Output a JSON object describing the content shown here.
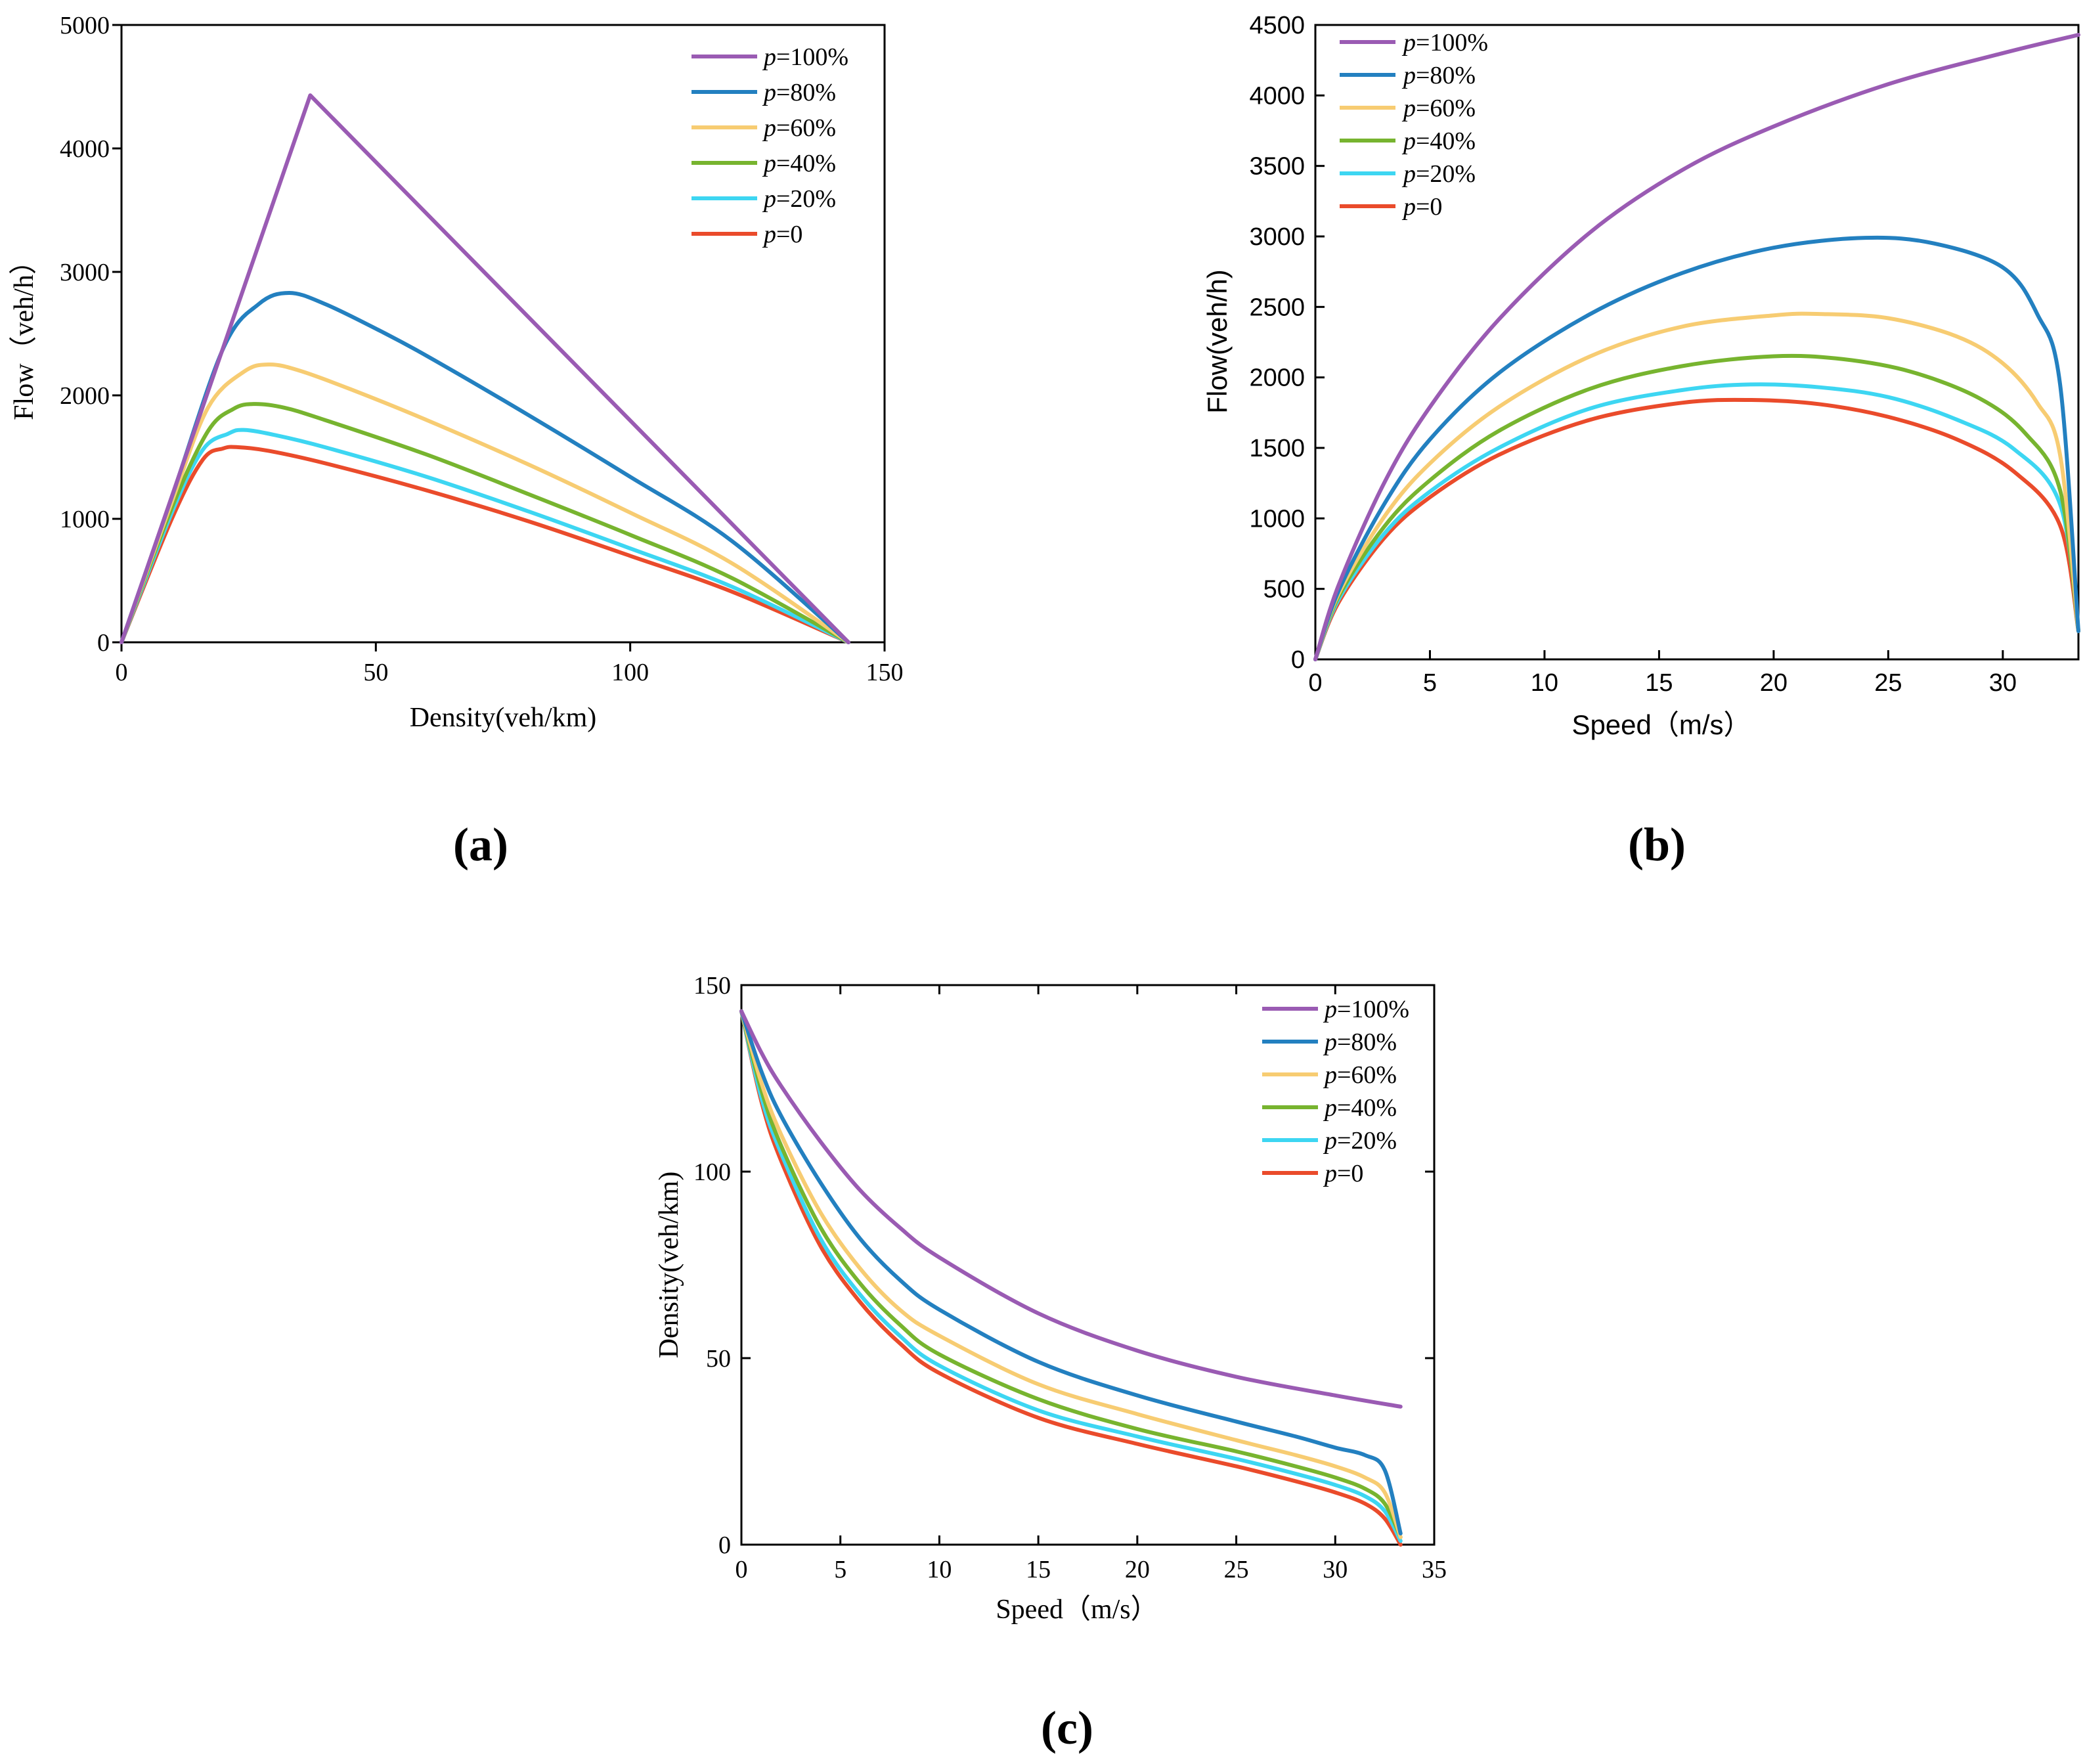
{
  "colors": {
    "p100": "#9A5BB3",
    "p80": "#2380C0",
    "p60": "#F7CC72",
    "p40": "#77B42F",
    "p20": "#3DD6F2",
    "p0": "#EA4B2B"
  },
  "chart_data": [
    {
      "id": "a",
      "type": "line",
      "panel_label": "(a)",
      "title": "",
      "xlabel": "Density(veh/km)",
      "ylabel": "Flow（veh/h）",
      "xlim": [
        0,
        150
      ],
      "ylim": [
        0,
        5000
      ],
      "xticks": [
        "0",
        "50",
        "100",
        "150"
      ],
      "yticks": [
        "0",
        "1000",
        "2000",
        "3000",
        "4000",
        "5000"
      ],
      "legend_position": "top-right",
      "series": [
        {
          "key": "p100",
          "name_italic": "p",
          "name_rest": "=100%",
          "x": [
            0,
            37.1,
            142.9
          ],
          "y": [
            0,
            4430,
            0
          ]
        },
        {
          "key": "p80",
          "name_italic": "p",
          "name_rest": "=80%",
          "x": [
            0,
            10,
            20,
            27,
            33,
            40,
            50,
            60,
            80,
            100,
            120,
            142.9
          ],
          "y": [
            0,
            1190,
            2380,
            2740,
            2830,
            2740,
            2540,
            2320,
            1840,
            1340,
            820,
            0
          ]
        },
        {
          "key": "p60",
          "name_italic": "p",
          "name_rest": "=60%",
          "x": [
            0,
            10,
            17,
            24,
            29,
            35,
            45,
            60,
            80,
            100,
            120,
            142.9
          ],
          "y": [
            0,
            1150,
            1900,
            2190,
            2250,
            2200,
            2050,
            1800,
            1440,
            1050,
            640,
            0
          ]
        },
        {
          "key": "p40",
          "name_italic": "p",
          "name_rest": "=40%",
          "x": [
            0,
            10,
            17,
            22,
            26,
            32,
            40,
            60,
            80,
            100,
            120,
            142.9
          ],
          "y": [
            0,
            1100,
            1710,
            1890,
            1930,
            1900,
            1800,
            1520,
            1200,
            870,
            520,
            0
          ]
        },
        {
          "key": "p20",
          "name_italic": "p",
          "name_rest": "=20%",
          "x": [
            0,
            10,
            16,
            21,
            24,
            30,
            40,
            60,
            80,
            100,
            120,
            142.9
          ],
          "y": [
            0,
            1060,
            1560,
            1690,
            1720,
            1680,
            1580,
            1340,
            1060,
            760,
            450,
            0
          ]
        },
        {
          "key": "p0",
          "name_italic": "p",
          "name_rest": "=0",
          "x": [
            0,
            10,
            16,
            20,
            23,
            29,
            40,
            60,
            80,
            100,
            120,
            142.9
          ],
          "y": [
            0,
            1010,
            1480,
            1570,
            1580,
            1550,
            1450,
            1230,
            980,
            700,
            410,
            0
          ]
        }
      ]
    },
    {
      "id": "b",
      "type": "line",
      "panel_label": "(b)",
      "title": "",
      "xlabel": "Speed（m/s）",
      "ylabel": "Flow(veh/h)",
      "xlim": [
        0,
        33.3
      ],
      "ylim": [
        0,
        4500
      ],
      "xticks": [
        "0",
        "5",
        "10",
        "15",
        "20",
        "25",
        "30"
      ],
      "xtick_values": [
        0,
        5,
        10,
        15,
        20,
        25,
        30
      ],
      "yticks": [
        "0",
        "500",
        "1000",
        "1500",
        "2000",
        "2500",
        "3000",
        "3500",
        "4000",
        "4500"
      ],
      "legend_position": "top-left",
      "series": [
        {
          "key": "p100",
          "name_italic": "p",
          "name_rest": "=100%",
          "x": [
            0,
            1,
            3,
            5,
            8,
            12,
            16,
            20,
            25,
            30,
            33.3
          ],
          "y": [
            0,
            520,
            1250,
            1790,
            2410,
            3030,
            3470,
            3780,
            4080,
            4300,
            4430
          ]
        },
        {
          "key": "p80",
          "name_italic": "p",
          "name_rest": "=80%",
          "x": [
            0,
            1,
            3,
            5,
            8,
            12,
            16,
            20,
            24,
            27,
            30,
            31.5,
            32.5,
            33.3
          ],
          "y": [
            0,
            480,
            1100,
            1560,
            2030,
            2450,
            2740,
            2920,
            2990,
            2950,
            2780,
            2450,
            1950,
            200
          ]
        },
        {
          "key": "p60",
          "name_italic": "p",
          "name_rest": "=60%",
          "x": [
            0,
            1,
            3,
            5,
            8,
            12,
            16,
            20,
            22,
            25,
            28,
            30,
            31.5,
            32.5,
            33.3
          ],
          "y": [
            0,
            460,
            1010,
            1390,
            1790,
            2150,
            2360,
            2440,
            2450,
            2420,
            2290,
            2100,
            1820,
            1450,
            200
          ]
        },
        {
          "key": "p40",
          "name_italic": "p",
          "name_rest": "=40%",
          "x": [
            0,
            1,
            3,
            5,
            8,
            12,
            16,
            20,
            23,
            26,
            29,
            31,
            32.5,
            33.3
          ],
          "y": [
            0,
            440,
            940,
            1270,
            1620,
            1920,
            2080,
            2150,
            2130,
            2040,
            1850,
            1600,
            1200,
            200
          ]
        },
        {
          "key": "p20",
          "name_italic": "p",
          "name_rest": "=20%",
          "x": [
            0,
            1,
            3,
            5,
            8,
            12,
            16,
            19,
            22,
            25,
            28,
            30.5,
            32.5,
            33.3
          ],
          "y": [
            0,
            420,
            890,
            1190,
            1500,
            1780,
            1910,
            1950,
            1930,
            1860,
            1700,
            1490,
            1100,
            200
          ]
        },
        {
          "key": "p0",
          "name_italic": "p",
          "name_rest": "=0",
          "x": [
            0,
            1,
            3,
            5,
            8,
            12,
            16,
            19,
            22,
            25,
            28,
            30.5,
            32.5,
            33.3
          ],
          "y": [
            0,
            400,
            860,
            1150,
            1450,
            1700,
            1820,
            1840,
            1810,
            1720,
            1560,
            1330,
            950,
            200
          ]
        }
      ]
    },
    {
      "id": "c",
      "type": "line",
      "panel_label": "(c)",
      "title": "",
      "xlabel": "Speed（m/s）",
      "ylabel": "Density(veh/km)",
      "xlim": [
        0,
        35
      ],
      "ylim": [
        0,
        150
      ],
      "xticks": [
        "0",
        "5",
        "10",
        "15",
        "20",
        "25",
        "30",
        "35"
      ],
      "yticks": [
        "0",
        "50",
        "100",
        "150"
      ],
      "legend_position": "top-right",
      "series": [
        {
          "key": "p100",
          "name_italic": "p",
          "name_rest": "=100%",
          "x": [
            0,
            1,
            2,
            4,
            6,
            8,
            10,
            15,
            20,
            25,
            30,
            33.3
          ],
          "y": [
            143,
            132,
            123,
            108,
            95,
            85,
            77,
            62,
            52,
            45,
            40,
            37
          ]
        },
        {
          "key": "p80",
          "name_italic": "p",
          "name_rest": "=80%",
          "x": [
            0,
            1,
            2,
            4,
            6,
            8,
            10,
            15,
            20,
            25,
            28,
            30,
            31.5,
            32.5,
            33.3
          ],
          "y": [
            143,
            127,
            115,
            97,
            82,
            71,
            63,
            49,
            40,
            33,
            29,
            26,
            24,
            20,
            3
          ]
        },
        {
          "key": "p60",
          "name_italic": "p",
          "name_rest": "=60%",
          "x": [
            0,
            1,
            2,
            4,
            6,
            8,
            10,
            15,
            20,
            25,
            28,
            30,
            31.5,
            32.5,
            33.3
          ],
          "y": [
            143,
            124,
            110,
            89,
            74,
            63,
            56,
            43,
            35,
            28,
            24,
            21,
            18,
            14,
            2
          ]
        },
        {
          "key": "p40",
          "name_italic": "p",
          "name_rest": "=40%",
          "x": [
            0,
            1,
            2,
            4,
            6,
            8,
            10,
            15,
            20,
            25,
            28,
            30,
            31.5,
            32.5,
            33.3
          ],
          "y": [
            143,
            122,
            107,
            85,
            70,
            59,
            51,
            39,
            31,
            25,
            21,
            18,
            15,
            11,
            2
          ]
        },
        {
          "key": "p20",
          "name_italic": "p",
          "name_rest": "=20%",
          "x": [
            0,
            1,
            2,
            4,
            6,
            8,
            10,
            15,
            20,
            25,
            28,
            30,
            31.5,
            32.5,
            33.3
          ],
          "y": [
            143,
            120,
            105,
            82,
            67,
            56,
            48,
            36,
            29,
            23,
            19,
            16,
            13,
            9,
            1
          ]
        },
        {
          "key": "p0",
          "name_italic": "p",
          "name_rest": "=0",
          "x": [
            0,
            1,
            2,
            4,
            6,
            8,
            10,
            15,
            20,
            25,
            28,
            30,
            31.5,
            32.5,
            33.3
          ],
          "y": [
            143,
            119,
            103,
            80,
            65,
            54,
            46,
            34,
            27,
            21,
            17,
            14,
            11,
            7,
            0
          ]
        }
      ]
    }
  ]
}
